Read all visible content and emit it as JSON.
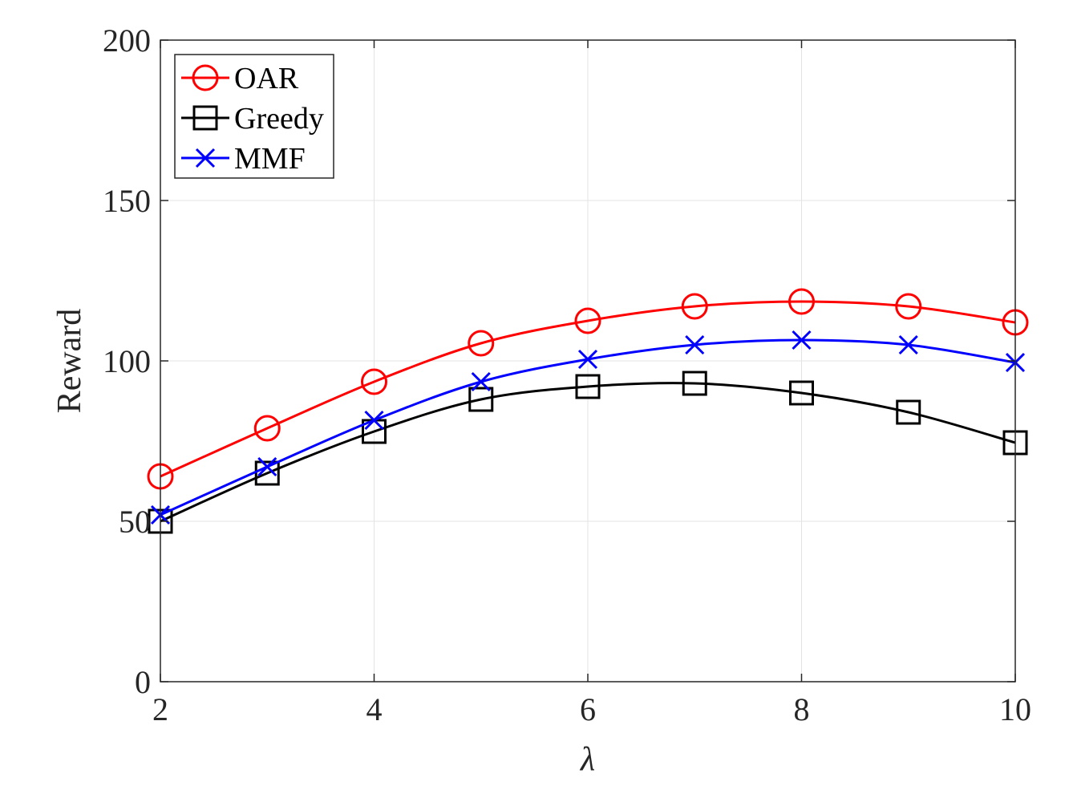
{
  "chart_data": {
    "type": "line",
    "title": "",
    "xlabel": "λ",
    "ylabel": "Reward",
    "x": [
      2,
      3,
      4,
      5,
      6,
      7,
      8,
      9,
      10
    ],
    "xlim": [
      2,
      10
    ],
    "ylim": [
      0,
      200
    ],
    "xticks": [
      2,
      4,
      6,
      8,
      10
    ],
    "yticks": [
      0,
      50,
      100,
      150,
      200
    ],
    "grid": true,
    "legend_position": "top-left",
    "series": [
      {
        "name": "OAR",
        "color": "#ff0000",
        "marker": "circle",
        "values": [
          64,
          79,
          93.5,
          105.5,
          112.5,
          117,
          118.5,
          117,
          112
        ]
      },
      {
        "name": "Greedy",
        "color": "#000000",
        "marker": "square",
        "values": [
          50,
          65,
          78,
          88,
          92,
          93,
          90,
          84,
          74.5
        ]
      },
      {
        "name": "MMF",
        "color": "#0000ff",
        "marker": "x",
        "values": [
          52,
          67,
          81.5,
          93.5,
          100.5,
          105,
          106.5,
          105,
          99.5
        ]
      }
    ]
  }
}
